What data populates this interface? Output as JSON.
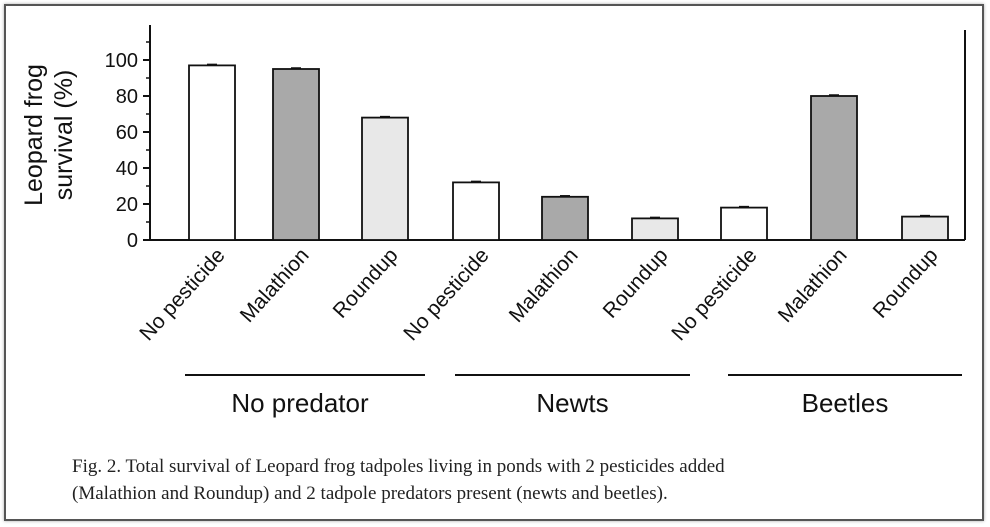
{
  "chart_data": {
    "type": "bar",
    "ylabel_line1": "Leopard frog",
    "ylabel_line2": "survival (%)",
    "ylim": [
      0,
      120
    ],
    "yticks": [
      "0",
      "20",
      "40",
      "60",
      "80",
      "100"
    ],
    "categories": [
      "No pesticide",
      "Malathion",
      "Roundup",
      "No pesticide",
      "Malathion",
      "Roundup",
      "No pesticide",
      "Malathion",
      "Roundup"
    ],
    "values": [
      97,
      95,
      68,
      32,
      24,
      12,
      18,
      80,
      13
    ],
    "bar_colors": [
      "#ffffff",
      "#a9a9a9",
      "#e8e8e8",
      "#ffffff",
      "#a9a9a9",
      "#e8e8e8",
      "#ffffff",
      "#a9a9a9",
      "#e8e8e8"
    ],
    "groups": [
      "No predator",
      "Newts",
      "Beetles"
    ]
  },
  "caption": {
    "line1": "Fig. 2.  Total survival of Leopard frog tadpoles living in ponds with 2 pesticides added",
    "line2": "(Malathion and Roundup) and 2 tadpole predators  present (newts and beetles)."
  }
}
